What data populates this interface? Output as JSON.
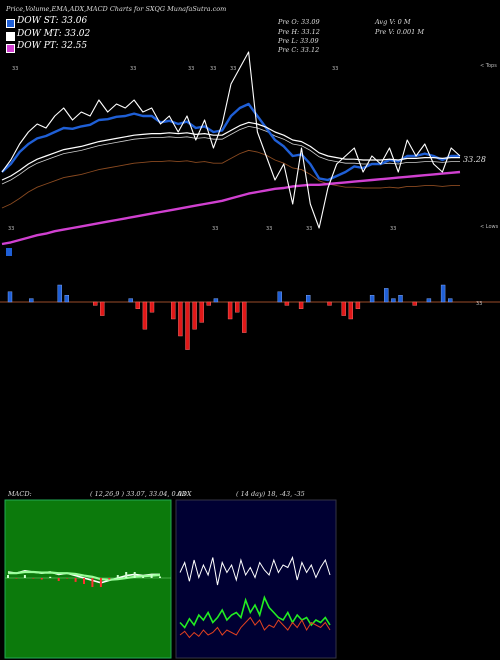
{
  "header": {
    "title": "Price,Volume,EMA,ADX,MACD Charts for SXQG MunafaSutra.com"
  },
  "legend": [
    {
      "label": "DOW ST: 33.06",
      "color": "#1f5fd6"
    },
    {
      "label": "DOW MT: 33.02",
      "color": "#ffffff"
    },
    {
      "label": "DOW PT: 32.55",
      "color": "#d040d0"
    }
  ],
  "prices": {
    "open": "Pre O: 33.09",
    "high": "Pre H: 33.12",
    "low": "Pre L: 33.09",
    "close": "Pre C: 33.12",
    "avg_vol": "Avg V: 0 M",
    "vol": "Pre V: 0.001 M"
  },
  "labels": {
    "top": "< Tops",
    "lows": "< Lows",
    "last_price": "33.28",
    "volume_tag": "33",
    "peak_mark": "33"
  },
  "macd": {
    "label": "MACD:",
    "params": "( 12,26,9 ) 33.07, 33.04, 0.03"
  },
  "adx": {
    "label": "ADX",
    "params": "( 14 day) 18, -43, -35"
  },
  "chart_data": [
    {
      "type": "line",
      "title": "Price with EMA",
      "series": [
        {
          "name": "price",
          "values": [
            33.2,
            33.35,
            33.55,
            33.7,
            33.8,
            33.75,
            33.9,
            34.0,
            33.85,
            33.95,
            33.9,
            34.1,
            33.95,
            34.05,
            34.0,
            34.1,
            33.95,
            34.0,
            33.8,
            33.9,
            33.7,
            33.9,
            33.6,
            33.85,
            33.5,
            33.8,
            34.3,
            34.5,
            34.7,
            33.7,
            33.4,
            33.1,
            33.3,
            32.8,
            33.5,
            32.8,
            32.5,
            33.0,
            33.3,
            33.4,
            33.5,
            33.2,
            33.4,
            33.3,
            33.5,
            33.2,
            33.6,
            33.4,
            33.55,
            33.3,
            33.2,
            33.5,
            33.4
          ]
        },
        {
          "name": "DOW ST",
          "values": [
            33.2,
            33.3,
            33.45,
            33.55,
            33.62,
            33.65,
            33.7,
            33.75,
            33.74,
            33.77,
            33.79,
            33.85,
            33.86,
            33.89,
            33.9,
            33.93,
            33.9,
            33.9,
            33.82,
            33.84,
            33.8,
            33.83,
            33.75,
            33.77,
            33.7,
            33.72,
            33.9,
            34.0,
            34.05,
            33.9,
            33.75,
            33.6,
            33.52,
            33.4,
            33.42,
            33.3,
            33.12,
            33.1,
            33.15,
            33.2,
            33.27,
            33.25,
            33.3,
            33.3,
            33.35,
            33.33,
            33.4,
            33.4,
            33.43,
            33.4,
            33.35,
            33.4,
            33.4
          ]
        },
        {
          "name": "DOW MT",
          "values": [
            33.1,
            33.15,
            33.22,
            33.3,
            33.36,
            33.4,
            33.44,
            33.48,
            33.5,
            33.52,
            33.55,
            33.58,
            33.6,
            33.62,
            33.64,
            33.66,
            33.67,
            33.68,
            33.68,
            33.69,
            33.68,
            33.69,
            33.67,
            33.68,
            33.66,
            33.66,
            33.72,
            33.78,
            33.82,
            33.8,
            33.76,
            33.7,
            33.66,
            33.6,
            33.58,
            33.52,
            33.44,
            33.4,
            33.38,
            33.36,
            33.36,
            33.35,
            33.35,
            33.35,
            33.36,
            33.35,
            33.37,
            33.37,
            33.38,
            33.38,
            33.37,
            33.38,
            33.38
          ]
        },
        {
          "name": "DOW PT",
          "values": [
            32.3,
            32.32,
            32.35,
            32.38,
            32.41,
            32.43,
            32.46,
            32.48,
            32.5,
            32.52,
            32.54,
            32.56,
            32.58,
            32.6,
            32.62,
            32.64,
            32.66,
            32.68,
            32.7,
            32.72,
            32.74,
            32.76,
            32.78,
            32.8,
            32.82,
            32.84,
            32.87,
            32.9,
            32.93,
            32.95,
            32.97,
            32.99,
            33.0,
            33.02,
            33.03,
            33.04,
            33.04,
            33.05,
            33.06,
            33.07,
            33.08,
            33.09,
            33.1,
            33.11,
            33.12,
            33.13,
            33.14,
            33.15,
            33.16,
            33.17,
            33.18,
            33.19,
            33.2
          ]
        }
      ]
    },
    {
      "type": "bar",
      "title": "Volume",
      "values": [
        0.3,
        0,
        0,
        0.1,
        0,
        0,
        0,
        0.5,
        0.2,
        0,
        0,
        0,
        -0.1,
        -0.4,
        0,
        0,
        0,
        0.1,
        -0.2,
        -0.8,
        -0.3,
        0,
        0,
        -0.5,
        -1.0,
        -1.4,
        -0.8,
        -0.6,
        -0.1,
        0.1,
        0,
        -0.5,
        -0.3,
        -0.9,
        0,
        0,
        0,
        0,
        0.3,
        -0.1,
        0,
        -0.2,
        0.2,
        0,
        0,
        -0.1,
        0,
        -0.4,
        -0.5,
        -0.2,
        0,
        0.2,
        0,
        0.4,
        0.1,
        0.2,
        0,
        -0.1,
        0,
        0.1,
        0,
        0.5,
        0.1,
        0
      ]
    },
    {
      "type": "line",
      "title": "MACD",
      "series": [
        {
          "name": "macd",
          "values": [
            0.05,
            0.04,
            0.06,
            0.05,
            0.04,
            0.05,
            0.03,
            0.04,
            0.02,
            0.0,
            -0.02,
            -0.04,
            -0.02,
            0.0,
            0.02,
            0.03,
            0.02,
            0.03,
            0.03
          ]
        },
        {
          "name": "signal",
          "values": [
            0.04,
            0.04,
            0.05,
            0.05,
            0.045,
            0.046,
            0.04,
            0.04,
            0.033,
            0.02,
            0.01,
            -0.01,
            -0.015,
            -0.01,
            0.0,
            0.01,
            0.015,
            0.02,
            0.025
          ]
        }
      ]
    },
    {
      "type": "line",
      "title": "ADX",
      "series": [
        {
          "name": "adx",
          "values": [
            62,
            70,
            55,
            72,
            58,
            68,
            60,
            74,
            52,
            70,
            62,
            68,
            56,
            72,
            60,
            66,
            58,
            70,
            64,
            60,
            72,
            62,
            68,
            66,
            74,
            56,
            70,
            62,
            68,
            58,
            66,
            72,
            60
          ]
        },
        {
          "name": "plus_di",
          "values": [
            22,
            18,
            25,
            20,
            28,
            24,
            30,
            22,
            26,
            32,
            24,
            28,
            30,
            26,
            40,
            30,
            36,
            28,
            42,
            34,
            30,
            26,
            24,
            30,
            22,
            28,
            24,
            26,
            20,
            24,
            22,
            26,
            20
          ]
        },
        {
          "name": "minus_di",
          "values": [
            12,
            15,
            10,
            14,
            11,
            16,
            12,
            14,
            18,
            12,
            16,
            14,
            12,
            18,
            22,
            26,
            20,
            24,
            16,
            20,
            18,
            24,
            20,
            16,
            22,
            18,
            24,
            16,
            22,
            20,
            18,
            22,
            16
          ]
        }
      ]
    }
  ]
}
